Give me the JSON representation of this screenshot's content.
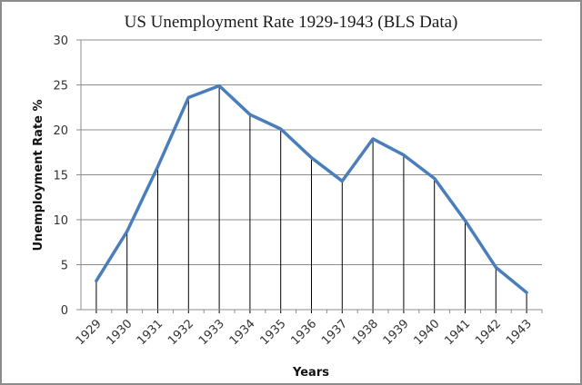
{
  "chart_data": {
    "type": "line",
    "title": "US Unemployment Rate  1929-1943 (BLS Data)",
    "xlabel": "Years",
    "ylabel": "Unemployment Rate %",
    "categories": [
      "1929",
      "1930",
      "1931",
      "1932",
      "1933",
      "1934",
      "1935",
      "1936",
      "1937",
      "1938",
      "1939",
      "1940",
      "1941",
      "1942",
      "1943"
    ],
    "series": [
      {
        "name": "Unemployment Rate",
        "color": "#4a7ebb",
        "values": [
          3.2,
          8.7,
          15.9,
          23.6,
          24.9,
          21.7,
          20.1,
          16.9,
          14.3,
          19.0,
          17.2,
          14.6,
          9.9,
          4.7,
          1.9
        ]
      }
    ],
    "ylim": [
      0,
      30
    ],
    "yticks": [
      0,
      5,
      10,
      15,
      20,
      25,
      30
    ],
    "grid": "horizontal",
    "drop_lines": true,
    "legend": "none"
  }
}
